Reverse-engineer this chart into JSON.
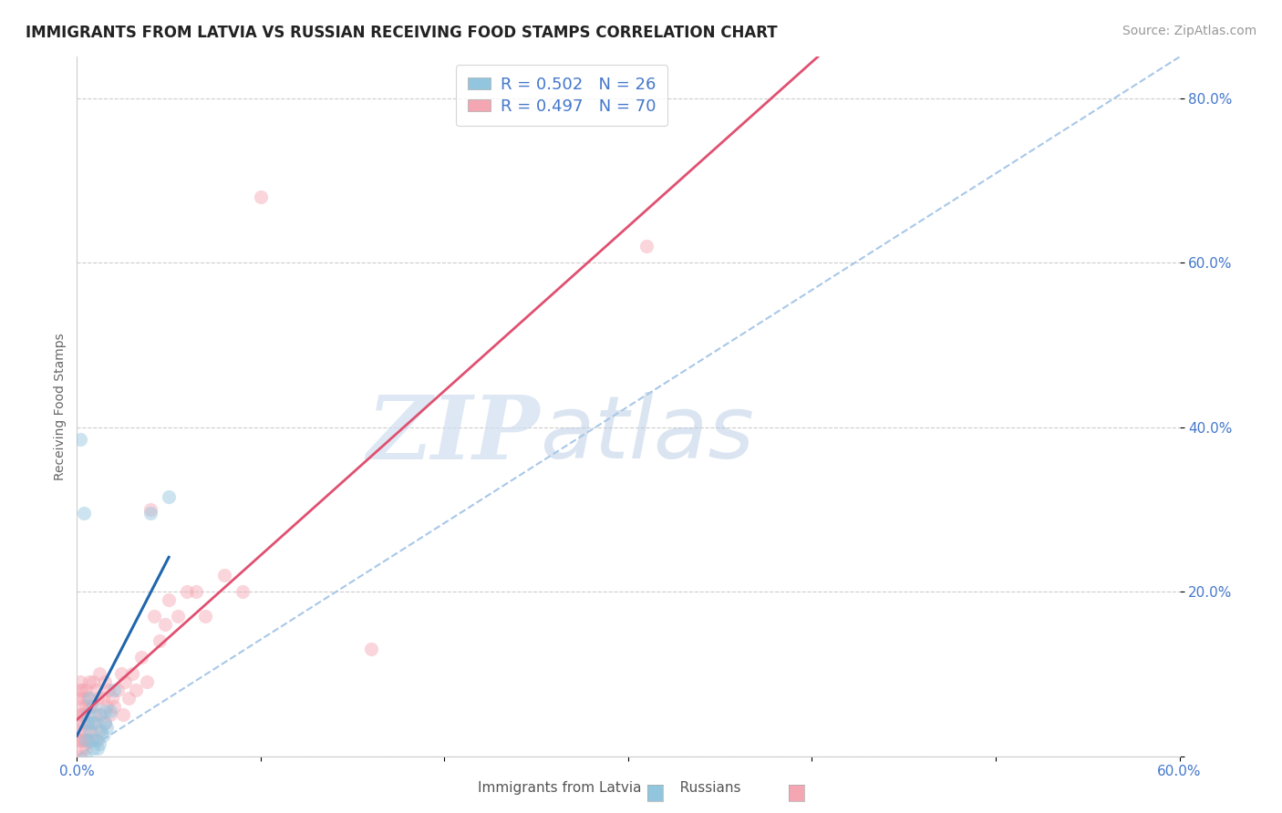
{
  "title": "IMMIGRANTS FROM LATVIA VS RUSSIAN RECEIVING FOOD STAMPS CORRELATION CHART",
  "source": "Source: ZipAtlas.com",
  "ylabel": "Receiving Food Stamps",
  "xlim": [
    0.0,
    0.6
  ],
  "ylim": [
    0.0,
    0.85
  ],
  "xticks": [
    0.0,
    0.1,
    0.2,
    0.3,
    0.4,
    0.5,
    0.6
  ],
  "yticks": [
    0.0,
    0.2,
    0.4,
    0.6,
    0.8
  ],
  "xticklabels": [
    "0.0%",
    "",
    "",
    "",
    "",
    "",
    "60.0%"
  ],
  "yticklabels": [
    "",
    "20.0%",
    "40.0%",
    "60.0%",
    "80.0%"
  ],
  "legend_latvia": "R = 0.502   N = 26",
  "legend_russian": "R = 0.497   N = 70",
  "latvia_color": "#92c5de",
  "russian_color": "#f4a6b2",
  "latvia_line_color": "#2166ac",
  "russian_line_color": "#e05070",
  "diagonal_color": "#a8c8e8",
  "watermark_zip": "ZIP",
  "watermark_atlas": "atlas",
  "background_color": "#ffffff",
  "grid_color": "#cccccc",
  "tick_label_color": "#4477cc",
  "latvia_scatter": [
    [
      0.002,
      0.385
    ],
    [
      0.004,
      0.295
    ],
    [
      0.005,
      0.0
    ],
    [
      0.005,
      0.02
    ],
    [
      0.006,
      0.05
    ],
    [
      0.006,
      0.04
    ],
    [
      0.007,
      0.03
    ],
    [
      0.007,
      0.07
    ],
    [
      0.008,
      0.02
    ],
    [
      0.008,
      0.04
    ],
    [
      0.009,
      0.01
    ],
    [
      0.009,
      0.06
    ],
    [
      0.01,
      0.04
    ],
    [
      0.01,
      0.02
    ],
    [
      0.011,
      0.01
    ],
    [
      0.012,
      0.015
    ],
    [
      0.012,
      0.05
    ],
    [
      0.013,
      0.03
    ],
    [
      0.014,
      0.025
    ],
    [
      0.015,
      0.055
    ],
    [
      0.015,
      0.04
    ],
    [
      0.016,
      0.035
    ],
    [
      0.018,
      0.055
    ],
    [
      0.02,
      0.08
    ],
    [
      0.04,
      0.295
    ],
    [
      0.05,
      0.315
    ]
  ],
  "russian_scatter": [
    [
      0.001,
      0.02
    ],
    [
      0.001,
      0.03
    ],
    [
      0.001,
      0.04
    ],
    [
      0.001,
      0.07
    ],
    [
      0.002,
      0.0
    ],
    [
      0.002,
      0.02
    ],
    [
      0.002,
      0.05
    ],
    [
      0.002,
      0.08
    ],
    [
      0.002,
      0.09
    ],
    [
      0.003,
      0.01
    ],
    [
      0.003,
      0.02
    ],
    [
      0.003,
      0.05
    ],
    [
      0.003,
      0.06
    ],
    [
      0.003,
      0.08
    ],
    [
      0.004,
      0.02
    ],
    [
      0.004,
      0.04
    ],
    [
      0.004,
      0.05
    ],
    [
      0.004,
      0.07
    ],
    [
      0.005,
      0.01
    ],
    [
      0.005,
      0.03
    ],
    [
      0.005,
      0.06
    ],
    [
      0.005,
      0.08
    ],
    [
      0.006,
      0.02
    ],
    [
      0.006,
      0.04
    ],
    [
      0.006,
      0.07
    ],
    [
      0.007,
      0.02
    ],
    [
      0.007,
      0.06
    ],
    [
      0.007,
      0.09
    ],
    [
      0.008,
      0.03
    ],
    [
      0.008,
      0.06
    ],
    [
      0.009,
      0.04
    ],
    [
      0.009,
      0.09
    ],
    [
      0.01,
      0.05
    ],
    [
      0.01,
      0.08
    ],
    [
      0.011,
      0.02
    ],
    [
      0.011,
      0.07
    ],
    [
      0.012,
      0.03
    ],
    [
      0.012,
      0.1
    ],
    [
      0.013,
      0.05
    ],
    [
      0.014,
      0.07
    ],
    [
      0.015,
      0.04
    ],
    [
      0.015,
      0.09
    ],
    [
      0.016,
      0.06
    ],
    [
      0.017,
      0.08
    ],
    [
      0.018,
      0.05
    ],
    [
      0.019,
      0.07
    ],
    [
      0.02,
      0.06
    ],
    [
      0.022,
      0.08
    ],
    [
      0.024,
      0.1
    ],
    [
      0.025,
      0.05
    ],
    [
      0.026,
      0.09
    ],
    [
      0.028,
      0.07
    ],
    [
      0.03,
      0.1
    ],
    [
      0.032,
      0.08
    ],
    [
      0.035,
      0.12
    ],
    [
      0.038,
      0.09
    ],
    [
      0.04,
      0.3
    ],
    [
      0.042,
      0.17
    ],
    [
      0.045,
      0.14
    ],
    [
      0.048,
      0.16
    ],
    [
      0.05,
      0.19
    ],
    [
      0.055,
      0.17
    ],
    [
      0.06,
      0.2
    ],
    [
      0.065,
      0.2
    ],
    [
      0.07,
      0.17
    ],
    [
      0.08,
      0.22
    ],
    [
      0.09,
      0.2
    ],
    [
      0.1,
      0.68
    ],
    [
      0.16,
      0.13
    ],
    [
      0.31,
      0.62
    ]
  ],
  "title_fontsize": 12,
  "axis_fontsize": 10,
  "tick_fontsize": 11,
  "legend_fontsize": 13,
  "source_fontsize": 10,
  "marker_size": 120,
  "marker_alpha": 0.45
}
